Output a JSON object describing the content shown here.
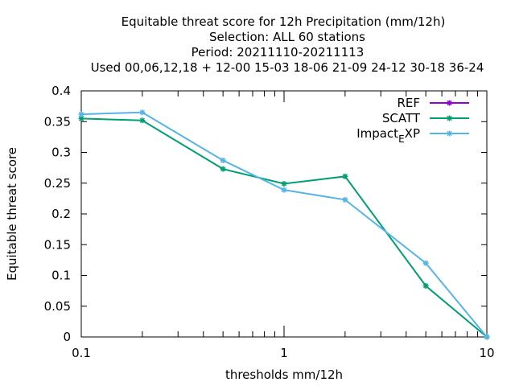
{
  "chart_data": {
    "type": "line",
    "title_lines": [
      "Equitable threat score  for 12h Precipitation (mm/12h)",
      "Selection: ALL     60 stations",
      "Period: 20211110-20211113",
      "Used  00,06,12,18 + 12-00 15-03 18-06 21-09 24-12 30-18 36-24"
    ],
    "xlabel": "thresholds mm/12h",
    "ylabel": "Equitable threat score",
    "x_scale": "log",
    "xlim": [
      0.1,
      10
    ],
    "ylim": [
      0,
      0.4
    ],
    "x_ticks": [
      {
        "value": 0.1,
        "label": "0.1"
      },
      {
        "value": 1,
        "label": "1"
      },
      {
        "value": 10,
        "label": "10"
      }
    ],
    "y_ticks": [
      {
        "value": 0,
        "label": "0"
      },
      {
        "value": 0.05,
        "label": "0.05"
      },
      {
        "value": 0.1,
        "label": "0.1"
      },
      {
        "value": 0.15,
        "label": "0.15"
      },
      {
        "value": 0.2,
        "label": "0.2"
      },
      {
        "value": 0.25,
        "label": "0.25"
      },
      {
        "value": 0.3,
        "label": "0.3"
      },
      {
        "value": 0.35,
        "label": "0.35"
      },
      {
        "value": 0.4,
        "label": "0.4"
      }
    ],
    "grid": false,
    "legend_position": "top-right",
    "series": [
      {
        "name": "REF",
        "color": "#9400d3",
        "x": [],
        "y": []
      },
      {
        "name": "SCATT",
        "color": "#009e73",
        "x": [
          0.1,
          0.2,
          0.5,
          1,
          2,
          5,
          10
        ],
        "y": [
          0.355,
          0.352,
          0.273,
          0.249,
          0.261,
          0.083,
          0.0
        ]
      },
      {
        "name": "Impact_EXP",
        "color": "#56b4e9",
        "x": [
          0.1,
          0.2,
          0.5,
          1,
          2,
          5,
          10
        ],
        "y": [
          0.362,
          0.365,
          0.287,
          0.239,
          0.223,
          0.12,
          0.0
        ]
      }
    ]
  }
}
